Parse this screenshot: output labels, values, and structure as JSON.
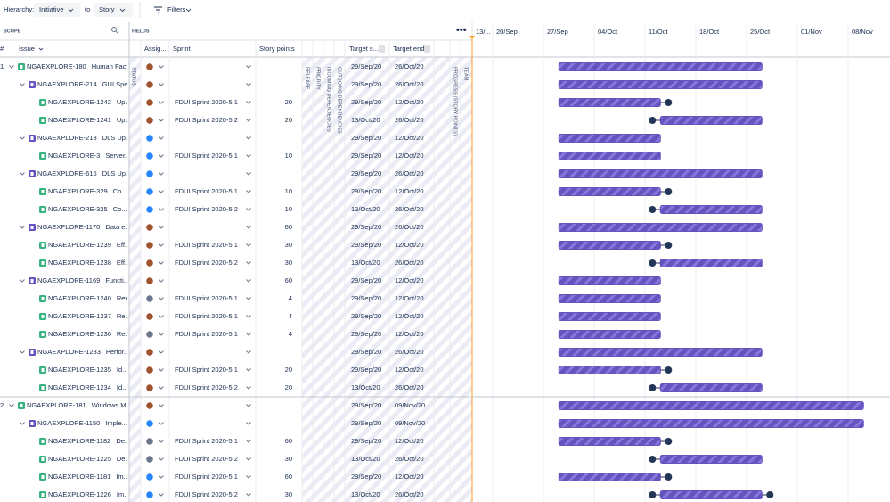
{
  "toolbar": {
    "hierarchy_label": "Hierarchy:",
    "from": "Initiative",
    "to_label": "to",
    "to": "Story",
    "filters": "Filters"
  },
  "scope": {
    "title": "SCOPE",
    "columns": {
      "number": "#",
      "issue": "Issue"
    }
  },
  "fields": {
    "title": "FIELDS",
    "columns": {
      "assignee": "Assig...",
      "sprint": "Sprint",
      "story_points": "Story points",
      "target_start": "Target s...",
      "target_end": "Target end"
    },
    "vertical": [
      "STATUS",
      "RELEASE",
      "PRIORITY",
      "INCOMING DEPENDENCIES",
      "OUTGOING DEPENDENCIES",
      "PROGRESS (STORY POINTS)",
      "TEAM"
    ]
  },
  "timeline": {
    "dates": [
      "13/...",
      "20/Sep",
      "27/Sep",
      "04/Oct",
      "11/Oct",
      "18/Oct",
      "25/Oct",
      "01/Nov",
      "08/Nov"
    ],
    "bar_color": "#6554c0"
  },
  "rows": [
    {
      "number": "1",
      "level": 0,
      "key": "NGAEXPLORE-180",
      "summary": "Human Fact...",
      "avatar_color": "#a0522d",
      "start": "29/Sep/20",
      "end": "26/Oct/20"
    },
    {
      "level": 1,
      "key": "NGAEXPLORE-214",
      "summary": "GUI Spe...",
      "avatar_color": "#a0522d",
      "start": "29/Sep/20",
      "end": "26/Oct/20"
    },
    {
      "level": 2,
      "key": "NGAEXPLORE-1242",
      "summary": "Up...",
      "avatar_color": "#a0522d",
      "sprint": "FDUI Sprint 2020-5.1",
      "points": 20,
      "start": "29/Sep/20",
      "end": "12/Oct/20",
      "badge_after": "1"
    },
    {
      "level": 2,
      "key": "NGAEXPLORE-1241",
      "summary": "Up...",
      "avatar_color": "#a0522d",
      "sprint": "FDUI Sprint 2020-5.2",
      "points": 20,
      "start": "13/Oct/20",
      "end": "26/Oct/20",
      "badge_before": "1"
    },
    {
      "level": 1,
      "key": "NGAEXPLORE-213",
      "summary": "DLS Up...",
      "avatar_color": "#2684ff",
      "start": "29/Sep/20",
      "end": "12/Oct/20"
    },
    {
      "level": 2,
      "key": "NGAEXPLORE-3",
      "summary": "Server...",
      "avatar_color": "#2684ff",
      "sprint": "FDUI Sprint 2020-5.1",
      "points": 10,
      "start": "29/Sep/20",
      "end": "12/Oct/20"
    },
    {
      "level": 1,
      "key": "NGAEXPLORE-616",
      "summary": "DLS Up...",
      "avatar_color": "#2684ff",
      "start": "29/Sep/20",
      "end": "26/Oct/20"
    },
    {
      "level": 2,
      "key": "NGAEXPLORE-329",
      "summary": "Co...",
      "avatar_color": "#2684ff",
      "sprint": "FDUI Sprint 2020-5.1",
      "points": 10,
      "start": "29/Sep/20",
      "end": "12/Oct/20",
      "badge_after": "1"
    },
    {
      "level": 2,
      "key": "NGAEXPLORE-325",
      "summary": "Co...",
      "avatar_color": "#2684ff",
      "sprint": "FDUI Sprint 2020-5.2",
      "points": 10,
      "start": "13/Oct/20",
      "end": "26/Oct/20",
      "badge_before": "1"
    },
    {
      "level": 1,
      "key": "NGAEXPLORE-1170",
      "summary": "Data e...",
      "avatar_color": "#a0522d",
      "points": 60,
      "start": "29/Sep/20",
      "end": "26/Oct/20"
    },
    {
      "level": 2,
      "key": "NGAEXPLORE-1239",
      "summary": "Eff...",
      "avatar_color": "#a0522d",
      "sprint": "FDUI Sprint 2020-5.1",
      "points": 30,
      "start": "29/Sep/20",
      "end": "12/Oct/20",
      "badge_after": "1"
    },
    {
      "level": 2,
      "key": "NGAEXPLORE-1238",
      "summary": "Eff...",
      "avatar_color": "#a0522d",
      "sprint": "FDUI Sprint 2020-5.2",
      "points": 30,
      "start": "13/Oct/20",
      "end": "26/Oct/20",
      "badge_before": "1"
    },
    {
      "level": 1,
      "key": "NGAEXPLORE-1169",
      "summary": "Functi...",
      "avatar_color": "#a0522d",
      "points": 60,
      "start": "29/Sep/20",
      "end": "12/Oct/20"
    },
    {
      "level": 2,
      "key": "NGAEXPLORE-1240",
      "summary": "Rev...",
      "avatar_color": "#6b778c",
      "sprint": "FDUI Sprint 2020-5.1",
      "points": 4,
      "start": "29/Sep/20",
      "end": "12/Oct/20"
    },
    {
      "level": 2,
      "key": "NGAEXPLORE-1237",
      "summary": "Re...",
      "avatar_color": "#a0522d",
      "sprint": "FDUI Sprint 2020-5.1",
      "points": 4,
      "start": "29/Sep/20",
      "end": "12/Oct/20"
    },
    {
      "level": 2,
      "key": "NGAEXPLORE-1236",
      "summary": "Re...",
      "avatar_color": "#6b778c",
      "sprint": "FDUI Sprint 2020-5.1",
      "points": 4,
      "start": "29/Sep/20",
      "end": "12/Oct/20"
    },
    {
      "level": 1,
      "key": "NGAEXPLORE-1233",
      "summary": "Perfor...",
      "avatar_color": "#a0522d",
      "start": "29/Sep/20",
      "end": "26/Oct/20"
    },
    {
      "level": 2,
      "key": "NGAEXPLORE-1235",
      "summary": "Id...",
      "avatar_color": "#a0522d",
      "sprint": "FDUI Sprint 2020-5.1",
      "points": 20,
      "start": "29/Sep/20",
      "end": "12/Oct/20",
      "badge_after": "1"
    },
    {
      "level": 2,
      "key": "NGAEXPLORE-1234",
      "summary": "Id...",
      "avatar_color": "#a0522d",
      "sprint": "FDUI Sprint 2020-5.2",
      "points": 20,
      "start": "13/Oct/20",
      "end": "26/Oct/20",
      "badge_before": "1"
    },
    {
      "number": "2",
      "level": 0,
      "key": "NGAEXPLORE-181",
      "summary": "Windows M...",
      "avatar_color": "#a0522d",
      "start": "29/Sep/20",
      "end": "09/Nov/20"
    },
    {
      "level": 1,
      "key": "NGAEXPLORE-1150",
      "summary": "Imple...",
      "avatar_color": "#2684ff",
      "start": "29/Sep/20",
      "end": "09/Nov/20"
    },
    {
      "level": 2,
      "key": "NGAEXPLORE-1182",
      "summary": "De...",
      "avatar_color": "#6b778c",
      "sprint": "FDUI Sprint 2020-5.1",
      "points": 60,
      "start": "29/Sep/20",
      "end": "12/Oct/20",
      "badge_after": "1"
    },
    {
      "level": 2,
      "key": "NGAEXPLORE-1225",
      "summary": "De...",
      "avatar_color": "#6b778c",
      "sprint": "FDUI Sprint 2020-5.2",
      "points": 30,
      "start": "13/Oct/20",
      "end": "26/Oct/20",
      "badge_before": "1"
    },
    {
      "level": 2,
      "key": "NGAEXPLORE-1181",
      "summary": "Im...",
      "avatar_color": "#2684ff",
      "sprint": "FDUI Sprint 2020-5.1",
      "points": 60,
      "start": "29/Sep/20",
      "end": "12/Oct/20",
      "badge_after": "1"
    },
    {
      "level": 2,
      "key": "NGAEXPLORE-1226",
      "summary": "Im...",
      "avatar_color": "#2684ff",
      "sprint": "FDUI Sprint 2020-5.2",
      "points": 30,
      "start": "13/Oct/20",
      "end": "26/Oct/20",
      "badge_before": "1",
      "badge_after": "1"
    }
  ]
}
